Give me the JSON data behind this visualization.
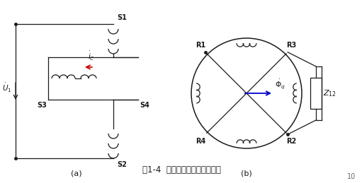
{
  "bg_color": "#ffffff",
  "line_color": "#1a1a1a",
  "title": "图1-4  一次侧补偿的旋转变压器",
  "title_fontsize": 8.5,
  "page_num": "10",
  "label_a": "(a)",
  "label_b": "(b)",
  "arrow_color_red": "#cc0000",
  "arrow_color_blue": "#0000cc"
}
